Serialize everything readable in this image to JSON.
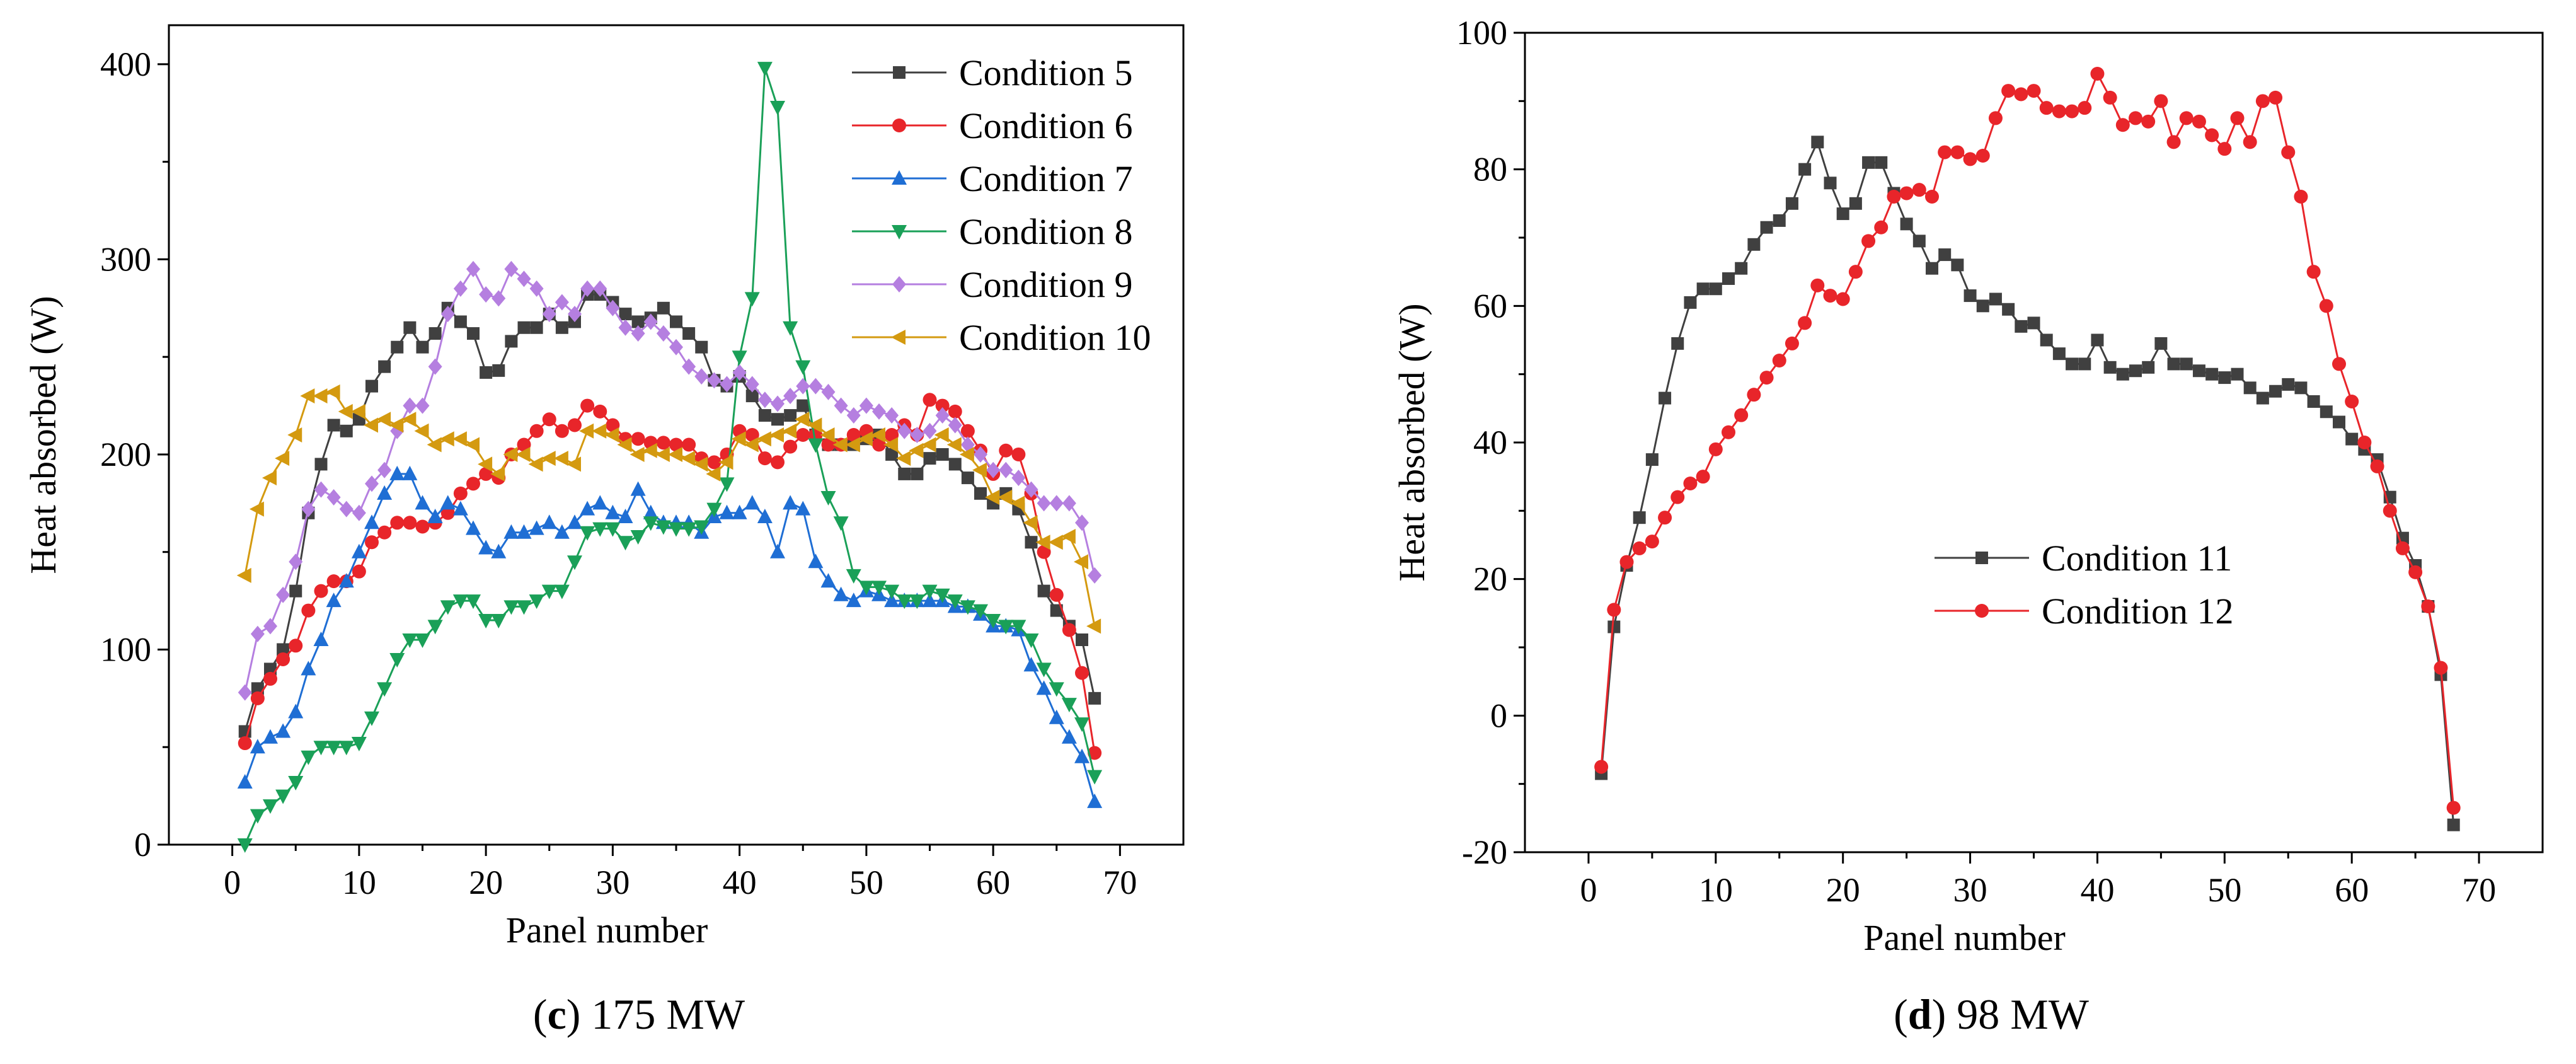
{
  "chart_data": [
    {
      "type": "line",
      "caption": {
        "letter": "c",
        "text": " 175 MW"
      },
      "xlabel": "Panel number",
      "ylabel": "Heat absorbed (W)",
      "xlim": [
        -5,
        75
      ],
      "ylim": [
        0,
        420
      ],
      "xticks": [
        0,
        10,
        20,
        30,
        40,
        50,
        60,
        70
      ],
      "yticks": [
        0,
        100,
        200,
        300,
        400
      ],
      "grid": false,
      "legend_position": "top-right",
      "x": [
        1,
        2,
        3,
        4,
        5,
        6,
        7,
        8,
        9,
        10,
        11,
        12,
        13,
        14,
        15,
        16,
        17,
        18,
        19,
        20,
        21,
        22,
        23,
        24,
        25,
        26,
        27,
        28,
        29,
        30,
        31,
        32,
        33,
        34,
        35,
        36,
        37,
        38,
        39,
        40,
        41,
        42,
        43,
        44,
        45,
        46,
        47,
        48,
        49,
        50,
        51,
        52,
        53,
        54,
        55,
        56,
        57,
        58,
        59,
        60,
        61,
        62,
        63,
        64,
        65,
        66,
        67,
        68
      ],
      "series": [
        {
          "name": "Condition 5",
          "color": "#404040",
          "marker": "square",
          "values": [
            58,
            80,
            90,
            100,
            130,
            170,
            195,
            215,
            212,
            218,
            235,
            245,
            255,
            265,
            255,
            262,
            275,
            268,
            262,
            242,
            243,
            258,
            265,
            265,
            272,
            265,
            268,
            282,
            282,
            278,
            272,
            268,
            270,
            275,
            268,
            262,
            255,
            238,
            235,
            240,
            230,
            220,
            218,
            220,
            225,
            210,
            205,
            205,
            205,
            208,
            210,
            200,
            190,
            190,
            198,
            200,
            195,
            188,
            180,
            175,
            180,
            172,
            155,
            130,
            120,
            112,
            105,
            75
          ]
        },
        {
          "name": "Condition 6",
          "color": "#e8252a",
          "marker": "circle",
          "values": [
            52,
            75,
            85,
            95,
            102,
            120,
            130,
            135,
            135,
            140,
            155,
            160,
            165,
            165,
            163,
            165,
            170,
            180,
            185,
            190,
            188,
            200,
            205,
            212,
            218,
            212,
            215,
            225,
            222,
            215,
            208,
            208,
            206,
            206,
            205,
            205,
            198,
            196,
            200,
            212,
            210,
            198,
            196,
            204,
            210,
            210,
            205,
            205,
            210,
            212,
            205,
            210,
            215,
            210,
            228,
            225,
            222,
            212,
            202,
            190,
            202,
            200,
            180,
            150,
            128,
            110,
            88,
            47
          ]
        },
        {
          "name": "Condition 7",
          "color": "#1f6ed4",
          "marker": "triangle-up",
          "values": [
            32,
            50,
            55,
            58,
            68,
            90,
            105,
            125,
            135,
            150,
            165,
            180,
            190,
            190,
            175,
            168,
            175,
            172,
            162,
            152,
            150,
            160,
            160,
            162,
            165,
            160,
            165,
            172,
            175,
            170,
            168,
            182,
            170,
            165,
            165,
            165,
            160,
            168,
            170,
            170,
            175,
            168,
            150,
            175,
            172,
            145,
            135,
            128,
            125,
            130,
            128,
            125,
            125,
            125,
            125,
            125,
            122,
            122,
            118,
            112,
            112,
            110,
            92,
            80,
            65,
            55,
            45,
            22
          ]
        },
        {
          "name": "Condition 8",
          "color": "#1aa058",
          "marker": "triangle-down",
          "values": [
            0,
            15,
            20,
            25,
            32,
            45,
            50,
            50,
            50,
            52,
            65,
            80,
            95,
            105,
            105,
            112,
            122,
            125,
            125,
            115,
            115,
            122,
            122,
            125,
            130,
            130,
            145,
            160,
            162,
            162,
            155,
            158,
            165,
            163,
            162,
            162,
            163,
            172,
            185,
            250,
            280,
            398,
            378,
            265,
            245,
            205,
            178,
            165,
            138,
            132,
            132,
            130,
            125,
            125,
            130,
            128,
            125,
            122,
            120,
            115,
            112,
            112,
            105,
            90,
            80,
            72,
            62,
            35
          ]
        },
        {
          "name": "Condition 9",
          "color": "#b57fe0",
          "marker": "diamond",
          "values": [
            78,
            108,
            112,
            128,
            145,
            172,
            182,
            178,
            172,
            170,
            185,
            192,
            212,
            225,
            225,
            245,
            272,
            285,
            295,
            282,
            280,
            295,
            290,
            285,
            272,
            278,
            272,
            285,
            285,
            275,
            265,
            262,
            268,
            262,
            255,
            245,
            240,
            238,
            236,
            242,
            236,
            228,
            226,
            230,
            235,
            235,
            232,
            225,
            220,
            225,
            222,
            220,
            212,
            210,
            212,
            220,
            215,
            205,
            200,
            192,
            192,
            188,
            182,
            175,
            175,
            175,
            165,
            138
          ]
        },
        {
          "name": "Condition 10",
          "color": "#d49a10",
          "marker": "triangle-left",
          "values": [
            138,
            172,
            188,
            198,
            210,
            230,
            230,
            232,
            222,
            222,
            215,
            218,
            215,
            218,
            212,
            205,
            208,
            208,
            205,
            195,
            190,
            200,
            200,
            195,
            198,
            198,
            195,
            212,
            212,
            210,
            205,
            200,
            202,
            200,
            200,
            198,
            195,
            190,
            196,
            208,
            205,
            208,
            210,
            212,
            218,
            215,
            210,
            205,
            205,
            208,
            210,
            205,
            198,
            202,
            205,
            210,
            205,
            200,
            192,
            178,
            178,
            175,
            165,
            155,
            155,
            158,
            145,
            112
          ]
        }
      ]
    },
    {
      "type": "line",
      "caption": {
        "letter": "d",
        "text": " 98 MW"
      },
      "xlabel": "Panel number",
      "ylabel": "Heat absorbed (W)",
      "xlim": [
        -5,
        75
      ],
      "ylim": [
        -20,
        100
      ],
      "xticks": [
        0,
        10,
        20,
        30,
        40,
        50,
        60,
        70
      ],
      "yticks": [
        -20,
        0,
        20,
        40,
        60,
        80,
        100
      ],
      "grid": false,
      "legend_position": "center",
      "x": [
        1,
        2,
        3,
        4,
        5,
        6,
        7,
        8,
        9,
        10,
        11,
        12,
        13,
        14,
        15,
        16,
        17,
        18,
        19,
        20,
        21,
        22,
        23,
        24,
        25,
        26,
        27,
        28,
        29,
        30,
        31,
        32,
        33,
        34,
        35,
        36,
        37,
        38,
        39,
        40,
        41,
        42,
        43,
        44,
        45,
        46,
        47,
        48,
        49,
        50,
        51,
        52,
        53,
        54,
        55,
        56,
        57,
        58,
        59,
        60,
        61,
        62,
        63,
        64,
        65,
        66,
        67,
        68
      ],
      "series": [
        {
          "name": "Condition 11",
          "color": "#404040",
          "marker": "square",
          "values": [
            -8.5,
            13,
            22,
            29,
            37.5,
            46.5,
            54.5,
            60.5,
            62.5,
            62.5,
            64,
            65.5,
            69,
            71.5,
            72.5,
            75,
            80,
            84,
            78,
            73.5,
            75,
            81,
            81,
            76.5,
            72,
            69.5,
            65.5,
            67.5,
            66,
            61.5,
            60,
            61,
            59.5,
            57,
            57.5,
            55,
            53,
            51.5,
            51.5,
            55,
            51,
            50,
            50.5,
            51,
            54.5,
            51.5,
            51.5,
            50.5,
            50,
            49.5,
            50,
            48,
            46.5,
            47.5,
            48.5,
            48,
            46,
            44.5,
            43,
            40.5,
            39,
            37.5,
            32,
            26,
            22,
            16,
            6,
            -16
          ]
        },
        {
          "name": "Condition 12",
          "color": "#e8252a",
          "marker": "circle",
          "values": [
            -7.5,
            15.5,
            22.5,
            24.5,
            25.5,
            29,
            32,
            34,
            35,
            39,
            41.5,
            44,
            47,
            49.5,
            52,
            54.5,
            57.5,
            63,
            61.5,
            61,
            65,
            69.5,
            71.5,
            76,
            76.5,
            77,
            76,
            82.5,
            82.5,
            81.5,
            82,
            87.5,
            91.5,
            91,
            91.5,
            89,
            88.5,
            88.5,
            89,
            94,
            90.5,
            86.5,
            87.5,
            87,
            90,
            84,
            87.5,
            87,
            85,
            83,
            87.5,
            84,
            90,
            90.5,
            82.5,
            76,
            65,
            60,
            51.5,
            46,
            40,
            36.5,
            30,
            24.5,
            21,
            16,
            7,
            -13.5
          ]
        }
      ]
    }
  ]
}
